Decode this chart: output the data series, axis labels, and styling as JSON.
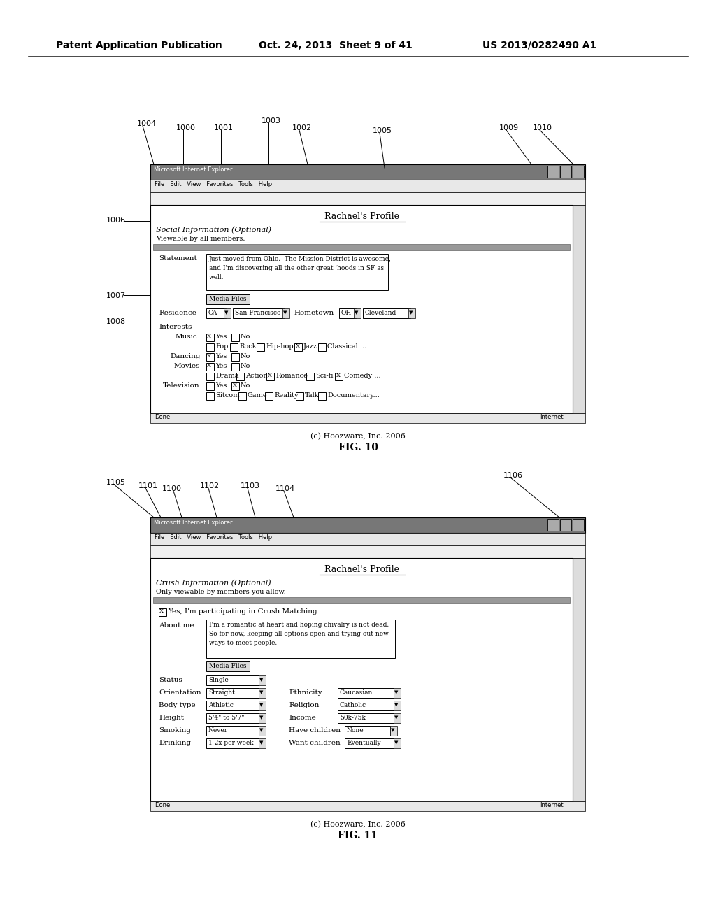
{
  "bg_color": "#ffffff",
  "header_text": "Patent Application Publication",
  "header_date": "Oct. 24, 2013  Sheet 9 of 41",
  "header_patent": "US 2013/0282490 A1",
  "fig10_title": "FIG. 10",
  "fig10_caption": "(c) Hoozware, Inc. 2006",
  "fig11_title": "FIG. 11",
  "fig11_caption": "(c) Hoozware, Inc. 2006"
}
